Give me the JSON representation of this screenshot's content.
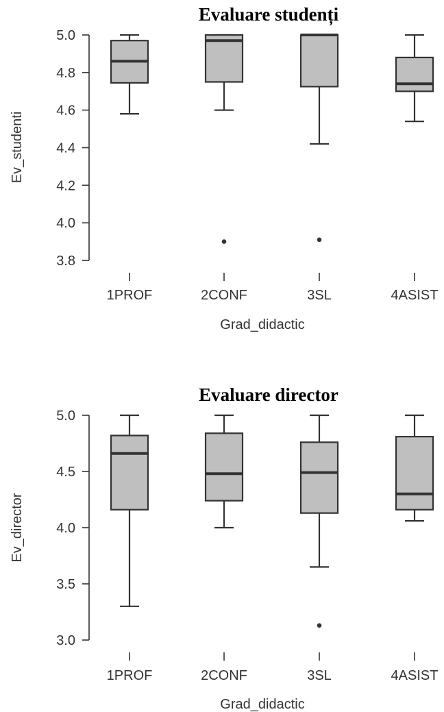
{
  "chart_data": [
    {
      "type": "box",
      "title": "Evaluare studenți",
      "xlabel": "Grad_didactic",
      "ylabel": "Ev_studenti",
      "categories": [
        "1PROF",
        "2CONF",
        "3SL",
        "4ASIST"
      ],
      "ylim": [
        3.8,
        5.0
      ],
      "yticks": [
        3.8,
        4.0,
        4.2,
        4.4,
        4.6,
        4.8,
        5.0
      ],
      "ytick_labels": [
        "3.8",
        "4.0",
        "4.2",
        "4.4",
        "4.6",
        "4.8",
        "5.0"
      ],
      "boxes": [
        {
          "category": "1PROF",
          "whisker_low": 4.58,
          "q1": 4.745,
          "median": 4.86,
          "q3": 4.97,
          "whisker_high": 5.0,
          "outliers": []
        },
        {
          "category": "2CONF",
          "whisker_low": 4.6,
          "q1": 4.75,
          "median": 4.97,
          "q3": 5.0,
          "whisker_high": 5.0,
          "outliers": [
            3.9
          ]
        },
        {
          "category": "3SL",
          "whisker_low": 4.42,
          "q1": 4.725,
          "median": 5.0,
          "q3": 5.0,
          "whisker_high": 5.0,
          "outliers": [
            3.91
          ]
        },
        {
          "category": "4ASIST",
          "whisker_low": 4.54,
          "q1": 4.7,
          "median": 4.74,
          "q3": 4.88,
          "whisker_high": 5.0,
          "outliers": []
        }
      ],
      "colors": {
        "box_fill": "#bfbfbf",
        "stroke": "#333333"
      }
    },
    {
      "type": "box",
      "title": "Evaluare director",
      "xlabel": "Grad_didactic",
      "ylabel": "Ev_director",
      "categories": [
        "1PROF",
        "2CONF",
        "3SL",
        "4ASIST"
      ],
      "ylim": [
        3.0,
        5.0
      ],
      "yticks": [
        3.0,
        3.5,
        4.0,
        4.5,
        5.0
      ],
      "ytick_labels": [
        "3.0",
        "3.5",
        "4.0",
        "4.5",
        "5.0"
      ],
      "boxes": [
        {
          "category": "1PROF",
          "whisker_low": 3.3,
          "q1": 4.16,
          "median": 4.66,
          "q3": 4.82,
          "whisker_high": 5.0,
          "outliers": []
        },
        {
          "category": "2CONF",
          "whisker_low": 4.0,
          "q1": 4.24,
          "median": 4.48,
          "q3": 4.84,
          "whisker_high": 5.0,
          "outliers": []
        },
        {
          "category": "3SL",
          "whisker_low": 3.65,
          "q1": 4.13,
          "median": 4.49,
          "q3": 4.76,
          "whisker_high": 5.0,
          "outliers": [
            3.13
          ]
        },
        {
          "category": "4ASIST",
          "whisker_low": 4.06,
          "q1": 4.16,
          "median": 4.3,
          "q3": 4.81,
          "whisker_high": 5.0,
          "outliers": []
        }
      ],
      "colors": {
        "box_fill": "#bfbfbf",
        "stroke": "#333333"
      }
    }
  ]
}
